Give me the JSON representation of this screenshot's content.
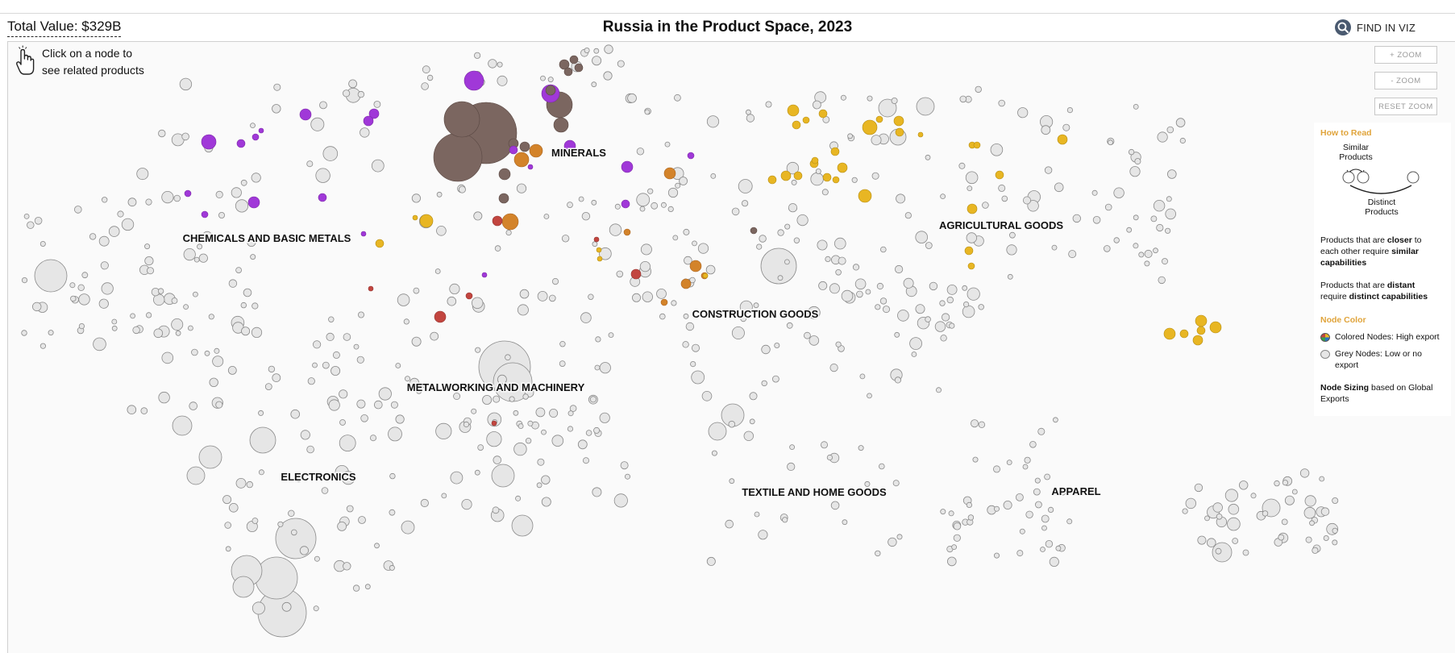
{
  "header": {
    "total_value": "Total Value: $329B",
    "title": "Russia in the Product Space, 2023",
    "find_label": "FIND IN VIZ",
    "find_icon": "search-icon"
  },
  "hint": {
    "icon": "hand-pointer-icon",
    "text_line1": "Click on a node to",
    "text_line2": "see related products"
  },
  "zoom": {
    "zoom_in": "+ ZOOM",
    "zoom_out": "- ZOOM",
    "reset": "RESET ZOOM"
  },
  "legend": {
    "how_title": "How to Read",
    "similar": "Similar\nProducts",
    "similar_1": "Similar",
    "similar_2": "Products",
    "distinct_1": "Distinct",
    "distinct_2": "Products",
    "closer_pre": "Products that are ",
    "closer_b1": "closer",
    "closer_mid": " to each other require ",
    "closer_b2": "similar capabilities",
    "distant_pre": "Products that are ",
    "distant_b1": "distant",
    "distant_mid": " require ",
    "distant_b2": "distinct capabilities",
    "color_title": "Node Color",
    "colored_label": "Colored Nodes: High export",
    "grey_label": "Grey Nodes: Low or no export",
    "sizing_b": "Node Sizing",
    "sizing_rest": " based on Global Exports"
  },
  "colors": {
    "purple": "#a038d8",
    "brown": "#7b6660",
    "orange": "#d3832a",
    "yellow": "#e8b623",
    "red": "#c2453f",
    "grey_fill": "#e6e6e6",
    "grey_stroke": "#8a8a8a",
    "legend_accent": "#e0a43b"
  },
  "clusters": [
    {
      "name": "MINERALS",
      "color": "brown"
    },
    {
      "name": "CHEMICALS AND BASIC METALS",
      "color": "purple"
    },
    {
      "name": "AGRICULTURAL GOODS",
      "color": "yellow"
    },
    {
      "name": "CONSTRUCTION GOODS",
      "color": "orange"
    },
    {
      "name": "METALWORKING AND MACHINERY",
      "color": "red"
    },
    {
      "name": "ELECTRONICS",
      "color": "grey"
    },
    {
      "name": "TEXTILE AND HOME GOODS",
      "color": "grey"
    },
    {
      "name": "APPAREL",
      "color": "grey"
    }
  ]
}
